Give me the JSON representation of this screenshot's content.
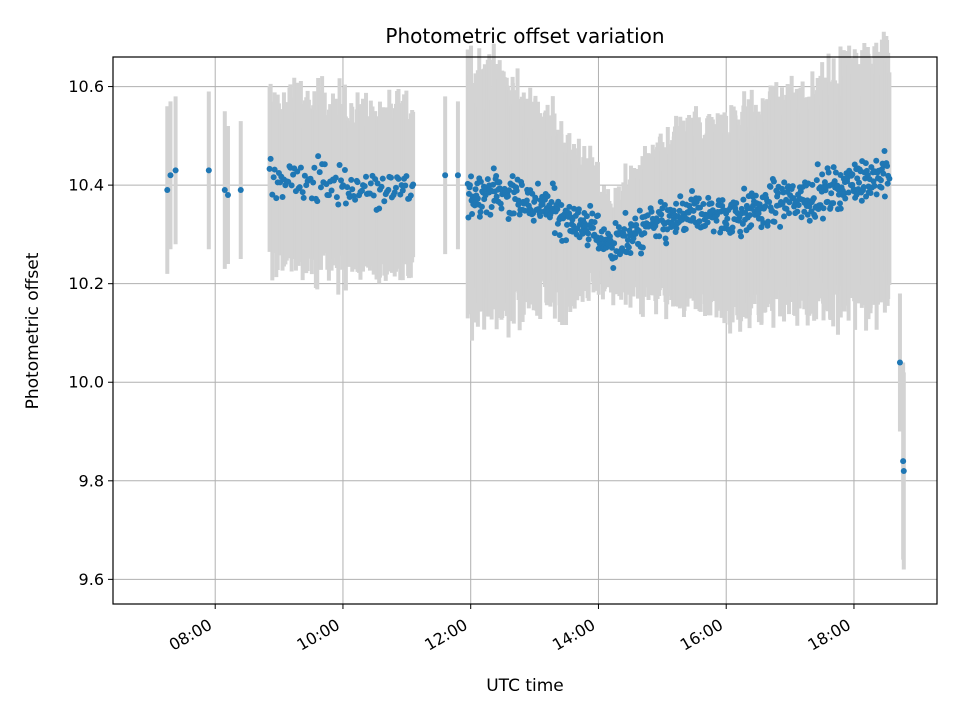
{
  "chart_data": {
    "type": "scatter",
    "title": "Photometric offset variation",
    "xlabel": "UTC time",
    "ylabel": "Photometric offset",
    "x_unit": "hours UTC",
    "xlim": [
      6.4,
      19.3
    ],
    "ylim": [
      9.55,
      10.66
    ],
    "x_ticks": [
      {
        "value": 8,
        "label": "08:00"
      },
      {
        "value": 10,
        "label": "10:00"
      },
      {
        "value": 12,
        "label": "12:00"
      },
      {
        "value": 14,
        "label": "14:00"
      },
      {
        "value": 16,
        "label": "16:00"
      },
      {
        "value": 18,
        "label": "18:00"
      }
    ],
    "y_ticks": [
      {
        "value": 9.6,
        "label": "9.6"
      },
      {
        "value": 9.8,
        "label": "9.8"
      },
      {
        "value": 10.0,
        "label": "10.0"
      },
      {
        "value": 10.2,
        "label": "10.2"
      },
      {
        "value": 10.4,
        "label": "10.4"
      },
      {
        "value": 10.6,
        "label": "10.6"
      }
    ],
    "grid": true,
    "colors": {
      "marker": "#1f77b4",
      "errorbar": "#d3d3d3",
      "grid": "#b0b0b0"
    },
    "key_points": [
      {
        "x": 7.25,
        "y": 10.39,
        "err": 0.17
      },
      {
        "x": 7.3,
        "y": 10.42,
        "err": 0.15
      },
      {
        "x": 7.38,
        "y": 10.43,
        "err": 0.15
      },
      {
        "x": 7.9,
        "y": 10.43,
        "err": 0.16
      },
      {
        "x": 8.15,
        "y": 10.39,
        "err": 0.16
      },
      {
        "x": 8.2,
        "y": 10.38,
        "err": 0.14
      },
      {
        "x": 8.4,
        "y": 10.39,
        "err": 0.14
      },
      {
        "x": 11.6,
        "y": 10.42,
        "err": 0.16
      },
      {
        "x": 11.8,
        "y": 10.42,
        "err": 0.15
      },
      {
        "x": 18.72,
        "y": 10.04,
        "err": 0.14
      },
      {
        "x": 18.77,
        "y": 9.84,
        "err": 0.2
      },
      {
        "x": 18.78,
        "y": 9.82,
        "err": 0.2
      }
    ],
    "dense_segments": [
      {
        "x_start": 8.85,
        "x_end": 11.1,
        "count": 110,
        "y_points": [
          [
            8.85,
            10.41
          ],
          [
            9.2,
            10.41
          ],
          [
            10.0,
            10.4
          ],
          [
            10.5,
            10.39
          ],
          [
            11.1,
            10.39
          ]
        ],
        "scatter": 0.022,
        "err": 0.16
      },
      {
        "x_start": 11.95,
        "x_end": 18.55,
        "count": 650,
        "y_points": [
          [
            11.95,
            10.38
          ],
          [
            12.4,
            10.39
          ],
          [
            12.8,
            10.37
          ],
          [
            13.3,
            10.35
          ],
          [
            13.6,
            10.33
          ],
          [
            13.9,
            10.31
          ],
          [
            14.2,
            10.28
          ],
          [
            14.4,
            10.29
          ],
          [
            14.7,
            10.31
          ],
          [
            15.0,
            10.32
          ],
          [
            15.4,
            10.34
          ],
          [
            16.0,
            10.34
          ],
          [
            16.5,
            10.35
          ],
          [
            17.0,
            10.37
          ],
          [
            17.5,
            10.38
          ],
          [
            18.0,
            10.41
          ],
          [
            18.5,
            10.42
          ]
        ],
        "scatter": 0.022,
        "err_points": [
          [
            11.95,
            10.15
          ],
          [
            13.0,
            10.18
          ],
          [
            14.2,
            10.21
          ],
          [
            15.0,
            10.18
          ],
          [
            16.0,
            10.17
          ],
          [
            17.5,
            10.18
          ],
          [
            18.5,
            10.18
          ]
        ]
      }
    ]
  }
}
